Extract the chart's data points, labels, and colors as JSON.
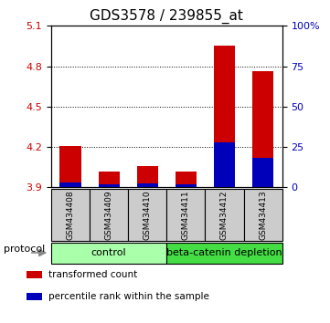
{
  "title": "GDS3578 / 239855_at",
  "samples": [
    "GSM434408",
    "GSM434409",
    "GSM434410",
    "GSM434411",
    "GSM434412",
    "GSM434413"
  ],
  "transformed_counts": [
    4.21,
    4.02,
    4.06,
    4.02,
    4.95,
    4.76
  ],
  "percentile_ranks": [
    3.0,
    2.0,
    2.5,
    2.0,
    28.0,
    18.0
  ],
  "ylim_left": [
    3.9,
    5.1
  ],
  "ylim_right": [
    0,
    100
  ],
  "yticks_left": [
    3.9,
    4.2,
    4.5,
    4.8,
    5.1
  ],
  "yticks_right": [
    0,
    25,
    50,
    75,
    100
  ],
  "bar_width": 0.55,
  "bar_color_red": "#cc0000",
  "bar_color_blue": "#0000bb",
  "groups": [
    {
      "label": "control",
      "start": 0,
      "end": 3,
      "color": "#aaffaa"
    },
    {
      "label": "beta-catenin depletion",
      "start": 3,
      "end": 6,
      "color": "#44dd44"
    }
  ],
  "protocol_label": "protocol",
  "legend_items": [
    {
      "color": "#cc0000",
      "label": "transformed count"
    },
    {
      "color": "#0000bb",
      "label": "percentile rank within the sample"
    }
  ],
  "background_color": "#cccccc",
  "title_fontsize": 11,
  "tick_fontsize": 8,
  "label_fontsize": 8
}
